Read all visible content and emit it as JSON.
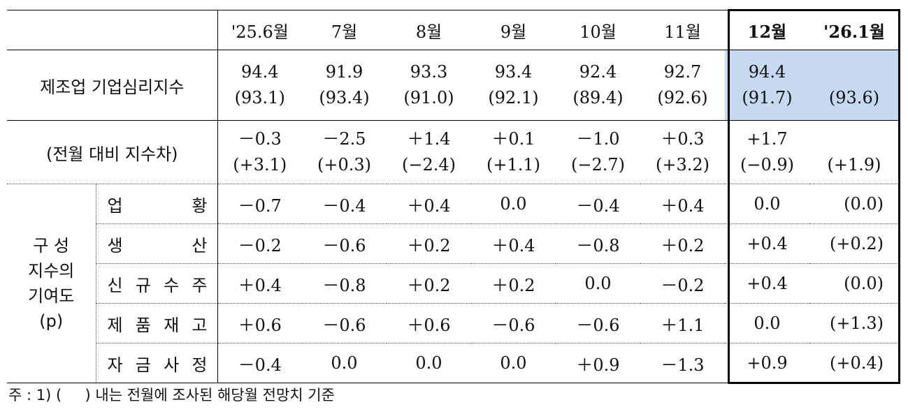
{
  "headers": [
    "'25.6월",
    "7월",
    "8월",
    "9월",
    "10월",
    "11월",
    "12월",
    "'26.1월"
  ],
  "main_row": {
    "label": "제조업 기업심리지수",
    "values": [
      {
        "a": "94.4",
        "b": "(93.1)"
      },
      {
        "a": "91.9",
        "b": "(93.4)"
      },
      {
        "a": "93.3",
        "b": "(91.0)"
      },
      {
        "a": "93.4",
        "b": "(92.1)"
      },
      {
        "a": "92.4",
        "b": "(89.4)"
      },
      {
        "a": "92.7",
        "b": "(92.6)"
      },
      {
        "a": "94.4",
        "b": "(91.7)"
      },
      {
        "a": "",
        "b": "(93.6)"
      }
    ]
  },
  "diff_row": {
    "label": "(전월 대비 지수차)",
    "values": [
      {
        "a": "－0.3",
        "b": "(+3.1)"
      },
      {
        "a": "－2.5",
        "b": "(+0.3)"
      },
      {
        "a": "＋1.4",
        "b": "(−2.4)"
      },
      {
        "a": "＋0.1",
        "b": "(+1.1)"
      },
      {
        "a": "－1.0",
        "b": "(−2.7)"
      },
      {
        "a": "＋0.3",
        "b": "(+3.2)"
      },
      {
        "a": "+1.7",
        "b": "(−0.9)"
      },
      {
        "a": "",
        "b": "(+1.9)"
      }
    ]
  },
  "component_group_label": {
    "line1": "구 성",
    "line2": "지수의",
    "line3": "기여도",
    "line4": "(p)"
  },
  "components": [
    {
      "label_chars": [
        "업",
        "황"
      ],
      "values": [
        "－0.7",
        "－0.4",
        "＋0.4",
        "0.0",
        "－0.4",
        "＋0.4",
        "0.0",
        "(0.0)"
      ]
    },
    {
      "label_chars": [
        "생",
        "산"
      ],
      "values": [
        "－0.2",
        "－0.6",
        "＋0.2",
        "＋0.4",
        "－0.8",
        "＋0.2",
        "+0.4",
        "(+0.2)"
      ]
    },
    {
      "label_chars": [
        "신",
        "규",
        "수",
        "주"
      ],
      "values": [
        "＋0.4",
        "－0.8",
        "＋0.2",
        "＋0.2",
        "0.0",
        "－0.2",
        "+0.4",
        "(0.0)"
      ]
    },
    {
      "label_chars": [
        "제",
        "품",
        "재",
        "고"
      ],
      "values": [
        "＋0.6",
        "－0.6",
        "＋0.6",
        "－0.6",
        "－0.6",
        "＋1.1",
        "0.0",
        "(+1.3)"
      ]
    },
    {
      "label_chars": [
        "자",
        "금",
        "사",
        "정"
      ],
      "values": [
        "－0.4",
        "0.0",
        "0.0",
        "0.0",
        "＋0.9",
        "－1.3",
        "+0.9",
        "(+0.4)"
      ]
    }
  ],
  "note": "주 : 1) (     ) 내는 전월에 조사된 해당월 전망치 기준",
  "colors": {
    "highlight": "#c6d9f0",
    "border": "#000000"
  }
}
